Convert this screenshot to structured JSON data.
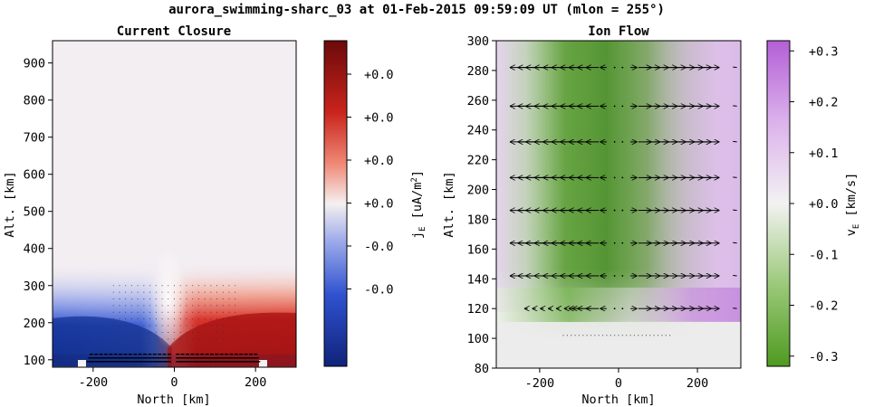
{
  "suptitle": "aurora_swimming-sharc_03 at 01-Feb-2015 09:59:09 UT (mlon = 255°)",
  "chart_data": [
    {
      "type": "heatmap",
      "title": "Current Closure",
      "xlabel": "North [km]",
      "ylabel": "Alt. [km]",
      "xlim": [
        -300,
        300
      ],
      "ylim": [
        80,
        960
      ],
      "xticks": [
        -200,
        0,
        200
      ],
      "yticks": [
        100,
        200,
        300,
        400,
        500,
        600,
        700,
        800,
        900
      ],
      "colorbar": {
        "label": "j_E [uA/m^2]",
        "label_main": "j",
        "label_sub": "E",
        "label_units": " [uA/m",
        "label_sup": "2",
        "label_close": "]",
        "ticklabels": [
          "+0.0",
          "+0.0",
          "+0.0",
          "+0.0",
          "-0.0",
          "-0.0"
        ],
        "colormap": "seismic",
        "low_color": "#10237a",
        "mid_color": "#f5f0f0",
        "high_color": "#6b0a0a"
      },
      "field": "negative current below ~300 km south of 0 km, positive current north of 0 km, converging near 130 km altitude"
    },
    {
      "type": "heatmap",
      "title": "Ion Flow",
      "xlabel": "North [km]",
      "ylabel": "Alt. [km]",
      "xlim": [
        -310,
        310
      ],
      "ylim": [
        80,
        300
      ],
      "xticks": [
        -200,
        0,
        200
      ],
      "yticks": [
        80,
        100,
        120,
        140,
        160,
        180,
        200,
        220,
        240,
        260,
        280,
        300
      ],
      "quiver_rows": [
        120,
        142,
        164,
        186,
        208,
        232,
        256,
        282
      ],
      "colorbar": {
        "label": "v_E [km/s]",
        "label_main": "v",
        "label_sub": "E",
        "label_units": " [km/s]",
        "ticklabels": [
          "+0.3",
          "+0.2",
          "+0.1",
          "+0.0",
          "-0.1",
          "-0.2",
          "-0.3"
        ],
        "tickvalues": [
          0.3,
          0.2,
          0.1,
          0.0,
          -0.1,
          -0.2,
          -0.3
        ],
        "range": [
          -0.32,
          0.32
        ],
        "colormap": "PiYG_r",
        "low_color": "#4e9a20",
        "mid_color": "#f2f2f2",
        "high_color": "#b35fd6"
      }
    }
  ]
}
